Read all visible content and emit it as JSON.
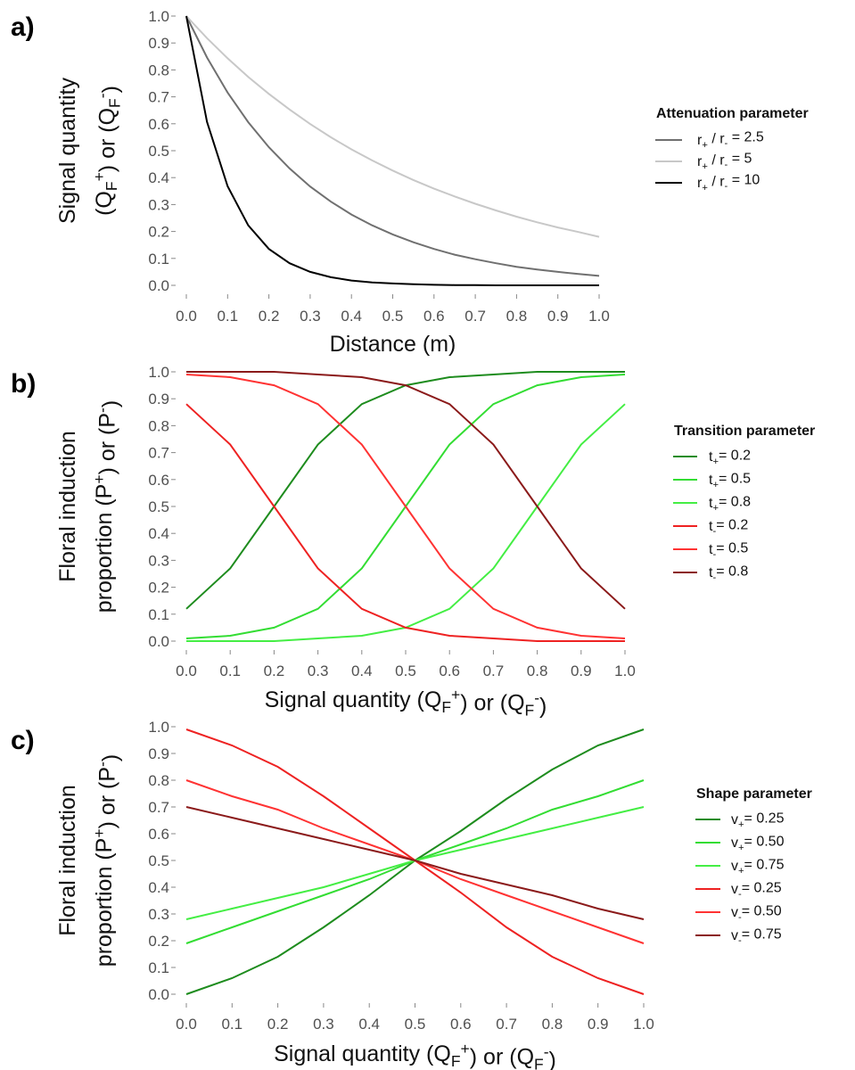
{
  "chart_data": [
    {
      "panel": "a)",
      "type": "line",
      "xlabel": "Distance (m)",
      "ylabel": {
        "line1": "Signal quantity",
        "line2": "(QF+) or (QF-)"
      },
      "xlim": [
        0,
        1
      ],
      "ylim": [
        0,
        1
      ],
      "xticks": [
        "0.0",
        "0.1",
        "0.2",
        "0.3",
        "0.4",
        "0.5",
        "0.6",
        "0.7",
        "0.8",
        "0.9",
        "1.0"
      ],
      "yticks": [
        "0.0",
        "0.1",
        "0.2",
        "0.3",
        "0.4",
        "0.5",
        "0.6",
        "0.7",
        "0.8",
        "0.9",
        "1.0"
      ],
      "grid": false,
      "legend_title": "Attenuation parameter",
      "legend_position": "right",
      "x": [
        0,
        0.05,
        0.1,
        0.15,
        0.2,
        0.25,
        0.3,
        0.35,
        0.4,
        0.45,
        0.5,
        0.55,
        0.6,
        0.65,
        0.7,
        0.75,
        0.8,
        0.85,
        0.9,
        0.95,
        1.0
      ],
      "series": [
        {
          "name": "r+ / r- = 2.5",
          "color": "#707070",
          "values": [
            1,
            0.846,
            0.716,
            0.606,
            0.513,
            0.434,
            0.367,
            0.311,
            0.263,
            0.223,
            0.189,
            0.16,
            0.135,
            0.114,
            0.097,
            0.082,
            0.069,
            0.059,
            0.05,
            0.042,
            0.035
          ]
        },
        {
          "name": "r+ / r- = 5",
          "color": "#c8c8c8",
          "values": [
            1,
            0.918,
            0.843,
            0.774,
            0.711,
            0.653,
            0.599,
            0.55,
            0.505,
            0.464,
            0.426,
            0.391,
            0.359,
            0.33,
            0.303,
            0.278,
            0.255,
            0.234,
            0.215,
            0.198,
            0.18
          ]
        },
        {
          "name": "r+ / r- = 10",
          "color": "#000000",
          "values": [
            1,
            0.607,
            0.368,
            0.223,
            0.135,
            0.082,
            0.05,
            0.03,
            0.018,
            0.011,
            0.007,
            0.004,
            0.002,
            0.001,
            0.001,
            0,
            0,
            0,
            0,
            0,
            0
          ]
        }
      ]
    },
    {
      "panel": "b)",
      "type": "line",
      "xlabel": "Signal quantity (QF+) or (QF-)",
      "ylabel": {
        "line1": "Floral induction",
        "line2": "proportion (P+) or (P-)"
      },
      "xlim": [
        0,
        1
      ],
      "ylim": [
        0,
        1
      ],
      "xticks": [
        "0.0",
        "0.1",
        "0.2",
        "0.3",
        "0.4",
        "0.5",
        "0.6",
        "0.7",
        "0.8",
        "0.9",
        "1.0"
      ],
      "yticks": [
        "0.0",
        "0.1",
        "0.2",
        "0.3",
        "0.4",
        "0.5",
        "0.6",
        "0.7",
        "0.8",
        "0.9",
        "1.0"
      ],
      "grid": false,
      "legend_title": "Transition parameter",
      "legend_position": "right",
      "x": [
        0,
        0.1,
        0.2,
        0.3,
        0.4,
        0.5,
        0.6,
        0.7,
        0.8,
        0.9,
        1.0
      ],
      "series": [
        {
          "name": "t+= 0.2",
          "color": "#1e8c1e",
          "values": [
            0.12,
            0.27,
            0.5,
            0.73,
            0.88,
            0.95,
            0.98,
            0.99,
            1.0,
            1.0,
            1.0
          ]
        },
        {
          "name": "t+= 0.5",
          "color": "#33dd33",
          "values": [
            0.01,
            0.02,
            0.05,
            0.12,
            0.27,
            0.5,
            0.73,
            0.88,
            0.95,
            0.98,
            0.99
          ]
        },
        {
          "name": "t+= 0.8",
          "color": "#44ee44",
          "values": [
            0.0,
            0.0,
            0.0,
            0.01,
            0.02,
            0.05,
            0.12,
            0.27,
            0.5,
            0.73,
            0.88
          ]
        },
        {
          "name": "t-= 0.2",
          "color": "#ee2222",
          "values": [
            0.88,
            0.73,
            0.5,
            0.27,
            0.12,
            0.05,
            0.02,
            0.01,
            0.0,
            0.0,
            0.0
          ]
        },
        {
          "name": "t-= 0.5",
          "color": "#ff3333",
          "values": [
            0.99,
            0.98,
            0.95,
            0.88,
            0.73,
            0.5,
            0.27,
            0.12,
            0.05,
            0.02,
            0.01
          ]
        },
        {
          "name": "t-= 0.8",
          "color": "#8b1a1a",
          "values": [
            1.0,
            1.0,
            1.0,
            0.99,
            0.98,
            0.95,
            0.88,
            0.73,
            0.5,
            0.27,
            0.12
          ]
        }
      ]
    },
    {
      "panel": "c)",
      "type": "line",
      "xlabel": "Signal quantity (QF+) or (QF-)",
      "ylabel": {
        "line1": "Floral induction",
        "line2": "proportion (P+) or (P-)"
      },
      "xlim": [
        0,
        1
      ],
      "ylim": [
        0,
        1
      ],
      "xticks": [
        "0.0",
        "0.1",
        "0.2",
        "0.3",
        "0.4",
        "0.5",
        "0.6",
        "0.7",
        "0.8",
        "0.9",
        "1.0"
      ],
      "yticks": [
        "0.0",
        "0.1",
        "0.2",
        "0.3",
        "0.4",
        "0.5",
        "0.6",
        "0.7",
        "0.8",
        "0.9",
        "1.0"
      ],
      "grid": false,
      "legend_title": "Shape parameter",
      "legend_position": "right",
      "x": [
        0,
        0.1,
        0.2,
        0.3,
        0.4,
        0.5,
        0.6,
        0.7,
        0.8,
        0.9,
        1.0
      ],
      "series": [
        {
          "name": "v+= 0.25",
          "color": "#1e8c1e",
          "values": [
            0.0,
            0.06,
            0.14,
            0.25,
            0.37,
            0.5,
            0.61,
            0.73,
            0.84,
            0.93,
            0.99
          ]
        },
        {
          "name": "v+= 0.50",
          "color": "#33dd33",
          "values": [
            0.19,
            0.25,
            0.31,
            0.37,
            0.43,
            0.5,
            0.56,
            0.62,
            0.69,
            0.74,
            0.8
          ]
        },
        {
          "name": "v+= 0.75",
          "color": "#44ee44",
          "values": [
            0.28,
            0.32,
            0.36,
            0.4,
            0.45,
            0.5,
            0.54,
            0.58,
            0.62,
            0.66,
            0.7
          ]
        },
        {
          "name": "v-= 0.25",
          "color": "#ee2222",
          "values": [
            0.99,
            0.93,
            0.85,
            0.74,
            0.62,
            0.5,
            0.38,
            0.25,
            0.14,
            0.06,
            0.0
          ]
        },
        {
          "name": "v-= 0.50",
          "color": "#ff3333",
          "values": [
            0.8,
            0.74,
            0.69,
            0.62,
            0.56,
            0.5,
            0.43,
            0.37,
            0.31,
            0.25,
            0.19
          ]
        },
        {
          "name": "v-= 0.75",
          "color": "#8b1a1a",
          "values": [
            0.7,
            0.66,
            0.62,
            0.58,
            0.54,
            0.5,
            0.45,
            0.41,
            0.37,
            0.32,
            0.28
          ]
        }
      ]
    }
  ]
}
